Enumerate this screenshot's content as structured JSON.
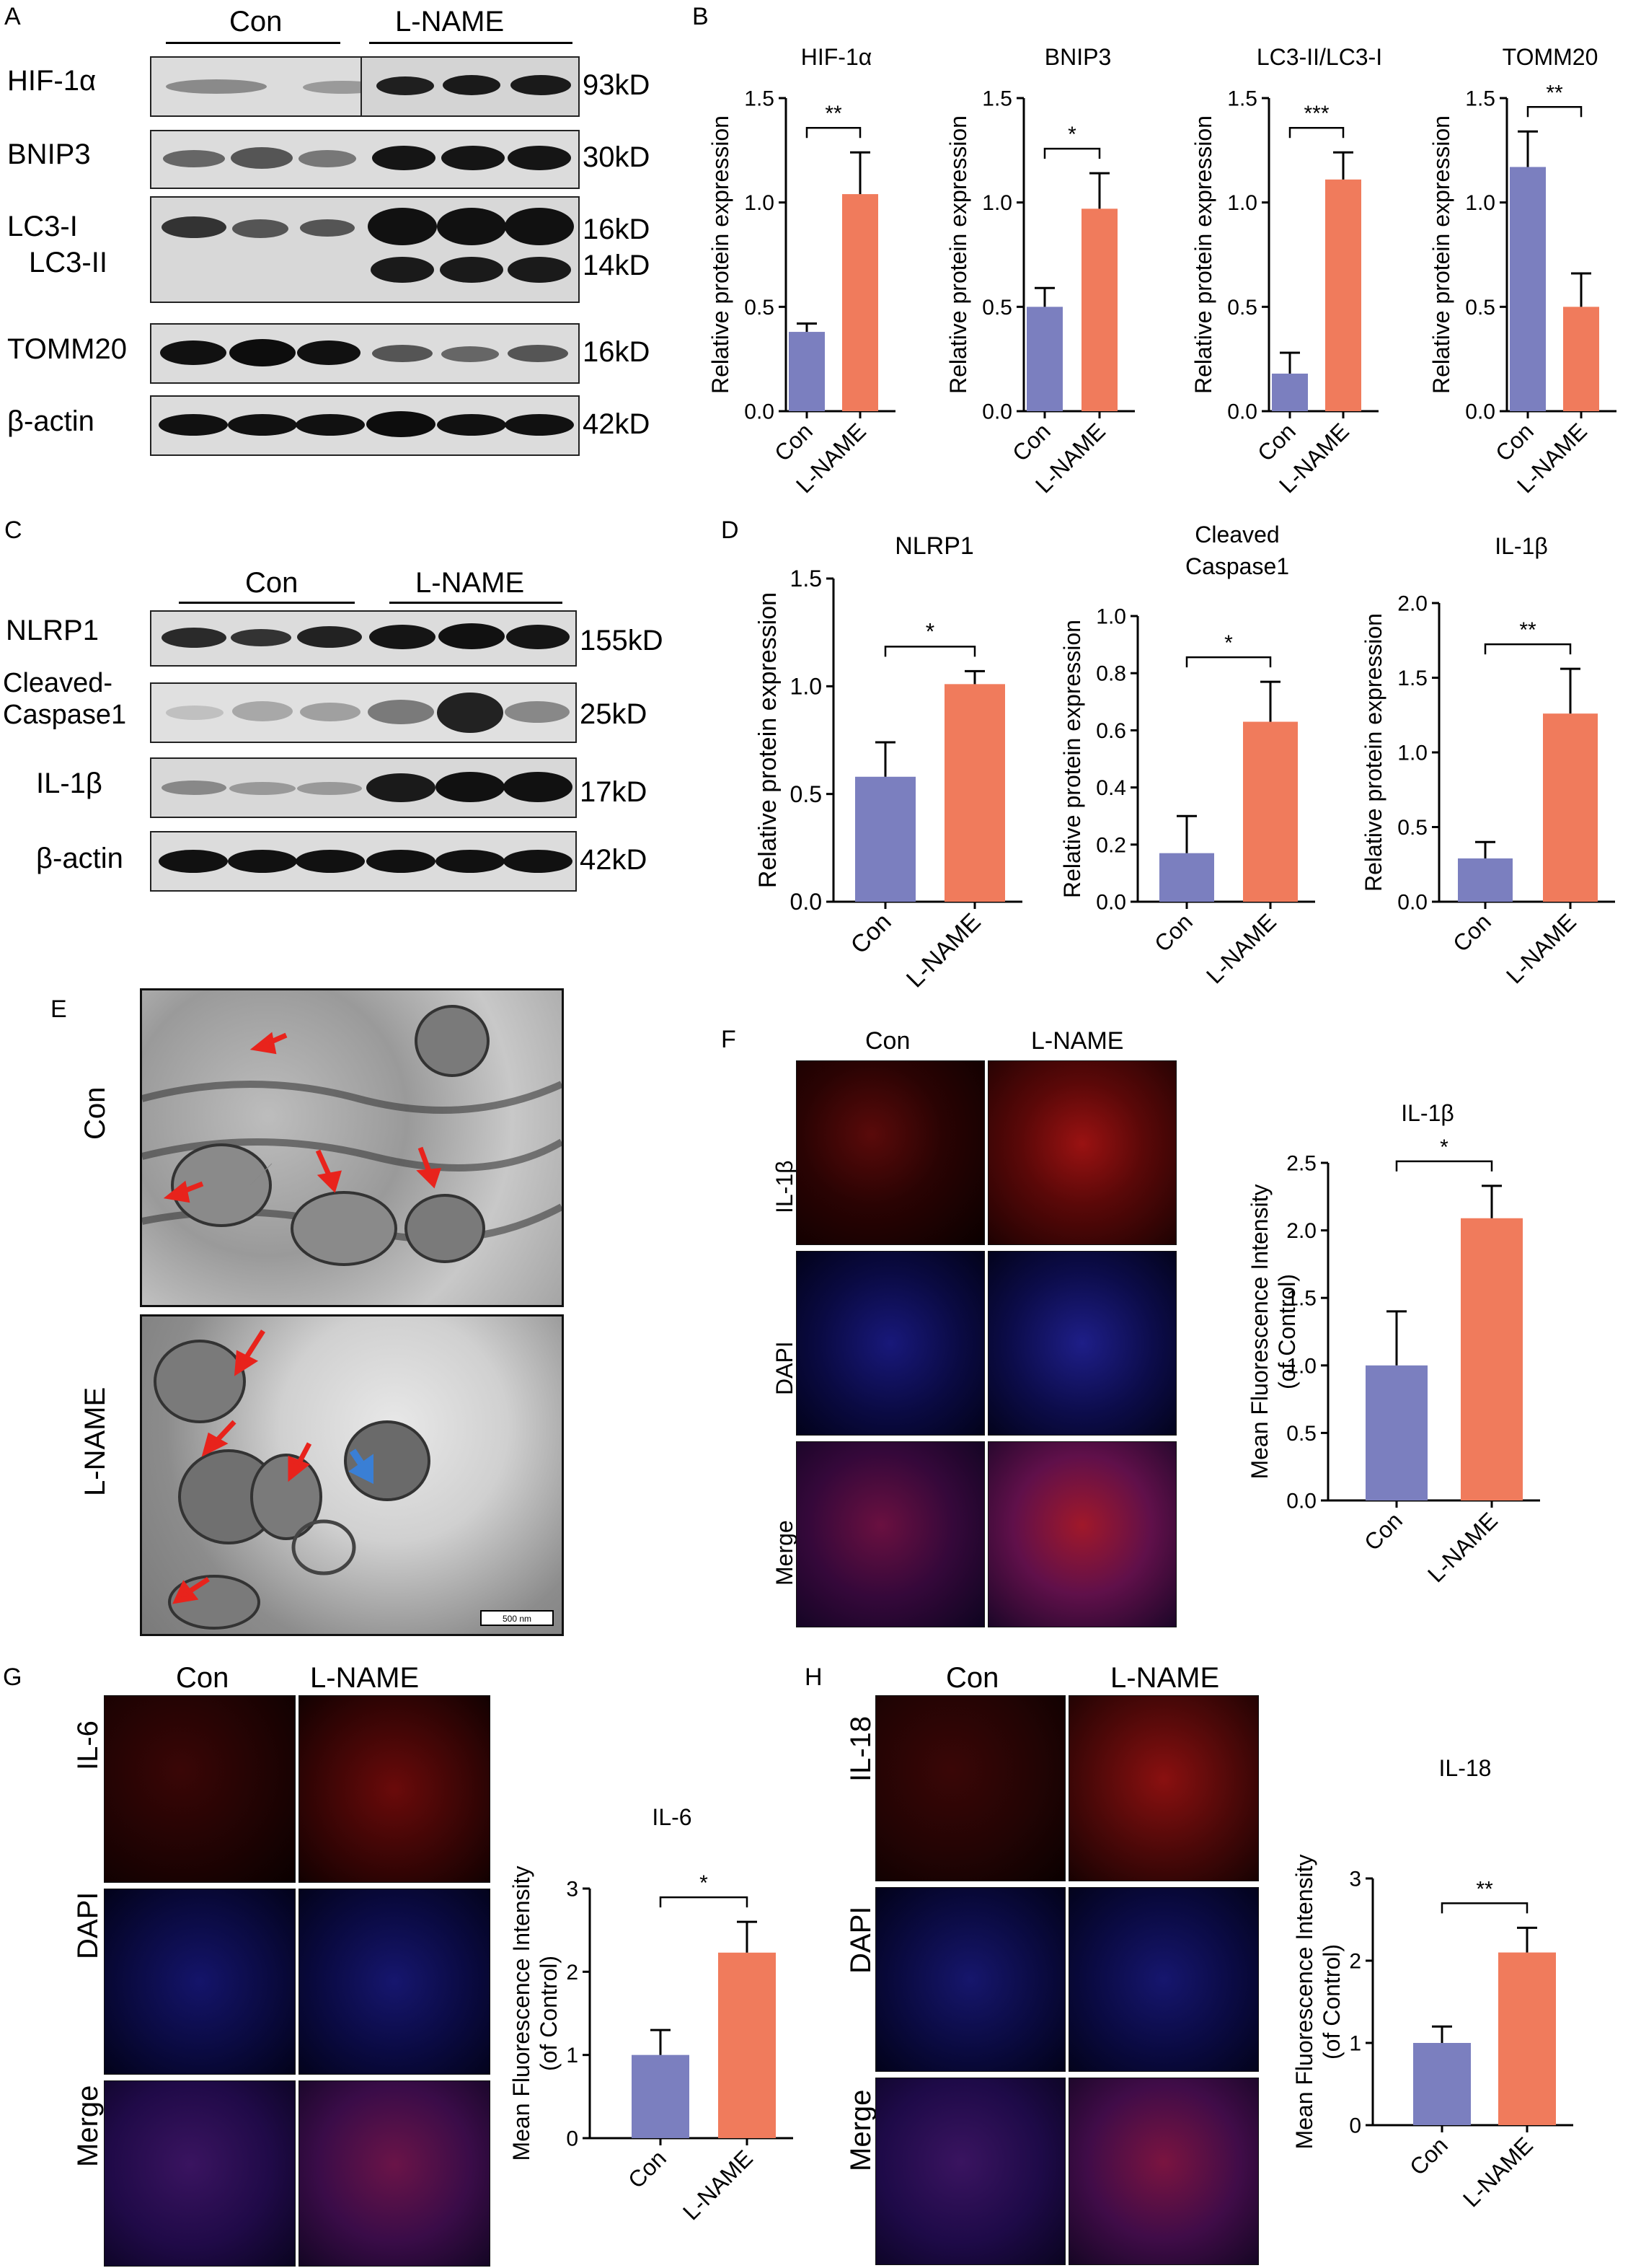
{
  "panels": {
    "A": {
      "letter": "A",
      "groups": [
        "Con",
        "L-NAME"
      ],
      "rows": [
        {
          "label": "HIF-1α",
          "size": "93kD"
        },
        {
          "label": "BNIP3",
          "size": "30kD"
        },
        {
          "label": "LC3-I",
          "label2": "LC3-II",
          "size": "16kD",
          "size2": "14kD"
        },
        {
          "label": "TOMM20",
          "size": "16kD"
        },
        {
          "label": "β-actin",
          "size": "42kD"
        }
      ]
    },
    "B": {
      "letter": "B"
    },
    "C": {
      "letter": "C",
      "groups": [
        "Con",
        "L-NAME"
      ],
      "rows": [
        {
          "label": "NLRP1",
          "size": "155kD"
        },
        {
          "label": "Cleaved-",
          "label2": "Caspase1",
          "size": "25kD"
        },
        {
          "label": "IL-1β",
          "size": "17kD"
        },
        {
          "label": "β-actin",
          "size": "42kD"
        }
      ]
    },
    "D": {
      "letter": "D"
    },
    "E": {
      "letter": "E",
      "rows": [
        "Con",
        "L-NAME"
      ],
      "scale_bar": "500 nm"
    },
    "F": {
      "letter": "F",
      "cols": [
        "Con",
        "L-NAME"
      ],
      "rows": [
        "IL-1β",
        "DAPI",
        "Merge"
      ]
    },
    "G": {
      "letter": "G",
      "cols": [
        "Con",
        "L-NAME"
      ],
      "rows": [
        "IL-6",
        "DAPI",
        "Merge"
      ]
    },
    "H": {
      "letter": "H",
      "cols": [
        "Con",
        "L-NAME"
      ],
      "rows": [
        "IL-18",
        "DAPI",
        "Merge"
      ]
    }
  },
  "colors": {
    "con": "#7b7fbf",
    "lname": "#f07b5c"
  },
  "chart_data": [
    {
      "id": "B1",
      "type": "bar",
      "title": "HIF-1α",
      "categories": [
        "Con",
        "L-NAME"
      ],
      "values": [
        0.38,
        1.04
      ],
      "errors": [
        0.04,
        0.2
      ],
      "ylabel": "Relative protein expression",
      "ylim": [
        0,
        1.5
      ],
      "yticks": [
        "0.0",
        "0.5",
        "1.0",
        "1.5"
      ],
      "sig": "**"
    },
    {
      "id": "B2",
      "type": "bar",
      "title": "BNIP3",
      "categories": [
        "Con",
        "L-NAME"
      ],
      "values": [
        0.5,
        0.97
      ],
      "errors": [
        0.09,
        0.17
      ],
      "ylabel": "Relative protein expression",
      "ylim": [
        0,
        1.5
      ],
      "yticks": [
        "0.0",
        "0.5",
        "1.0",
        "1.5"
      ],
      "sig": "*"
    },
    {
      "id": "B3",
      "type": "bar",
      "title": "LC3-II/LC3-I",
      "categories": [
        "Con",
        "L-NAME"
      ],
      "values": [
        0.18,
        1.11
      ],
      "errors": [
        0.1,
        0.13
      ],
      "ylabel": "Relative protein expression",
      "ylim": [
        0,
        1.5
      ],
      "yticks": [
        "0.0",
        "0.5",
        "1.0",
        "1.5"
      ],
      "sig": "***"
    },
    {
      "id": "B4",
      "type": "bar",
      "title": "TOMM20",
      "categories": [
        "Con",
        "L-NAME"
      ],
      "values": [
        1.17,
        0.5
      ],
      "errors": [
        0.17,
        0.16
      ],
      "ylabel": "Relative protein expression",
      "ylim": [
        0,
        1.5
      ],
      "yticks": [
        "0.0",
        "0.5",
        "1.0",
        "1.5"
      ],
      "sig": "**"
    },
    {
      "id": "D1",
      "type": "bar",
      "title": "NLRP1",
      "categories": [
        "Con",
        "L-NAME"
      ],
      "values": [
        0.58,
        1.01
      ],
      "errors": [
        0.16,
        0.06
      ],
      "ylabel": "Relative protein expression",
      "ylim": [
        0,
        1.5
      ],
      "yticks": [
        "0.0",
        "0.5",
        "1.0",
        "1.5"
      ],
      "sig": "*"
    },
    {
      "id": "D2",
      "type": "bar",
      "title": "Cleaved",
      "title2": "Caspase1",
      "categories": [
        "Con",
        "L-NAME"
      ],
      "values": [
        0.17,
        0.63
      ],
      "errors": [
        0.13,
        0.14
      ],
      "ylabel": "Relative protein expression",
      "ylim": [
        0,
        1.0
      ],
      "yticks": [
        "0.0",
        "0.2",
        "0.4",
        "0.6",
        "0.8",
        "1.0"
      ],
      "sig": "*"
    },
    {
      "id": "D3",
      "type": "bar",
      "title": "IL-1β",
      "categories": [
        "Con",
        "L-NAME"
      ],
      "values": [
        0.29,
        1.26
      ],
      "errors": [
        0.11,
        0.3
      ],
      "ylabel": "Relative protein expression",
      "ylim": [
        0,
        2.0
      ],
      "yticks": [
        "0.0",
        "0.5",
        "1.0",
        "1.5",
        "2.0"
      ],
      "sig": "**"
    },
    {
      "id": "F1",
      "type": "bar",
      "title": "IL-1β",
      "categories": [
        "Con",
        "L-NAME"
      ],
      "values": [
        1.0,
        2.09
      ],
      "errors": [
        0.4,
        0.24
      ],
      "ylabel": "Mean Fluorescence Intensity",
      "ylabel2": "(of Control)",
      "ylim": [
        0,
        2.5
      ],
      "yticks": [
        "0.0",
        "0.5",
        "1.0",
        "1.5",
        "2.0",
        "2.5"
      ],
      "sig": "*"
    },
    {
      "id": "G1",
      "type": "bar",
      "title": "IL-6",
      "categories": [
        "Con",
        "L-NAME"
      ],
      "values": [
        1.0,
        2.23
      ],
      "errors": [
        0.3,
        0.37
      ],
      "ylabel": "Mean Fluorescence Intensity",
      "ylabel2": "(of Control)",
      "ylim": [
        0,
        3
      ],
      "yticks": [
        "0",
        "1",
        "2",
        "3"
      ],
      "sig": "*"
    },
    {
      "id": "H1",
      "type": "bar",
      "title": "IL-18",
      "categories": [
        "Con",
        "L-NAME"
      ],
      "values": [
        1.0,
        2.1
      ],
      "errors": [
        0.2,
        0.3
      ],
      "ylabel": "Mean Fluorescence Intensity",
      "ylabel2": "(of Control)",
      "ylim": [
        0,
        3
      ],
      "yticks": [
        "0",
        "1",
        "2",
        "3"
      ],
      "sig": "**"
    }
  ]
}
